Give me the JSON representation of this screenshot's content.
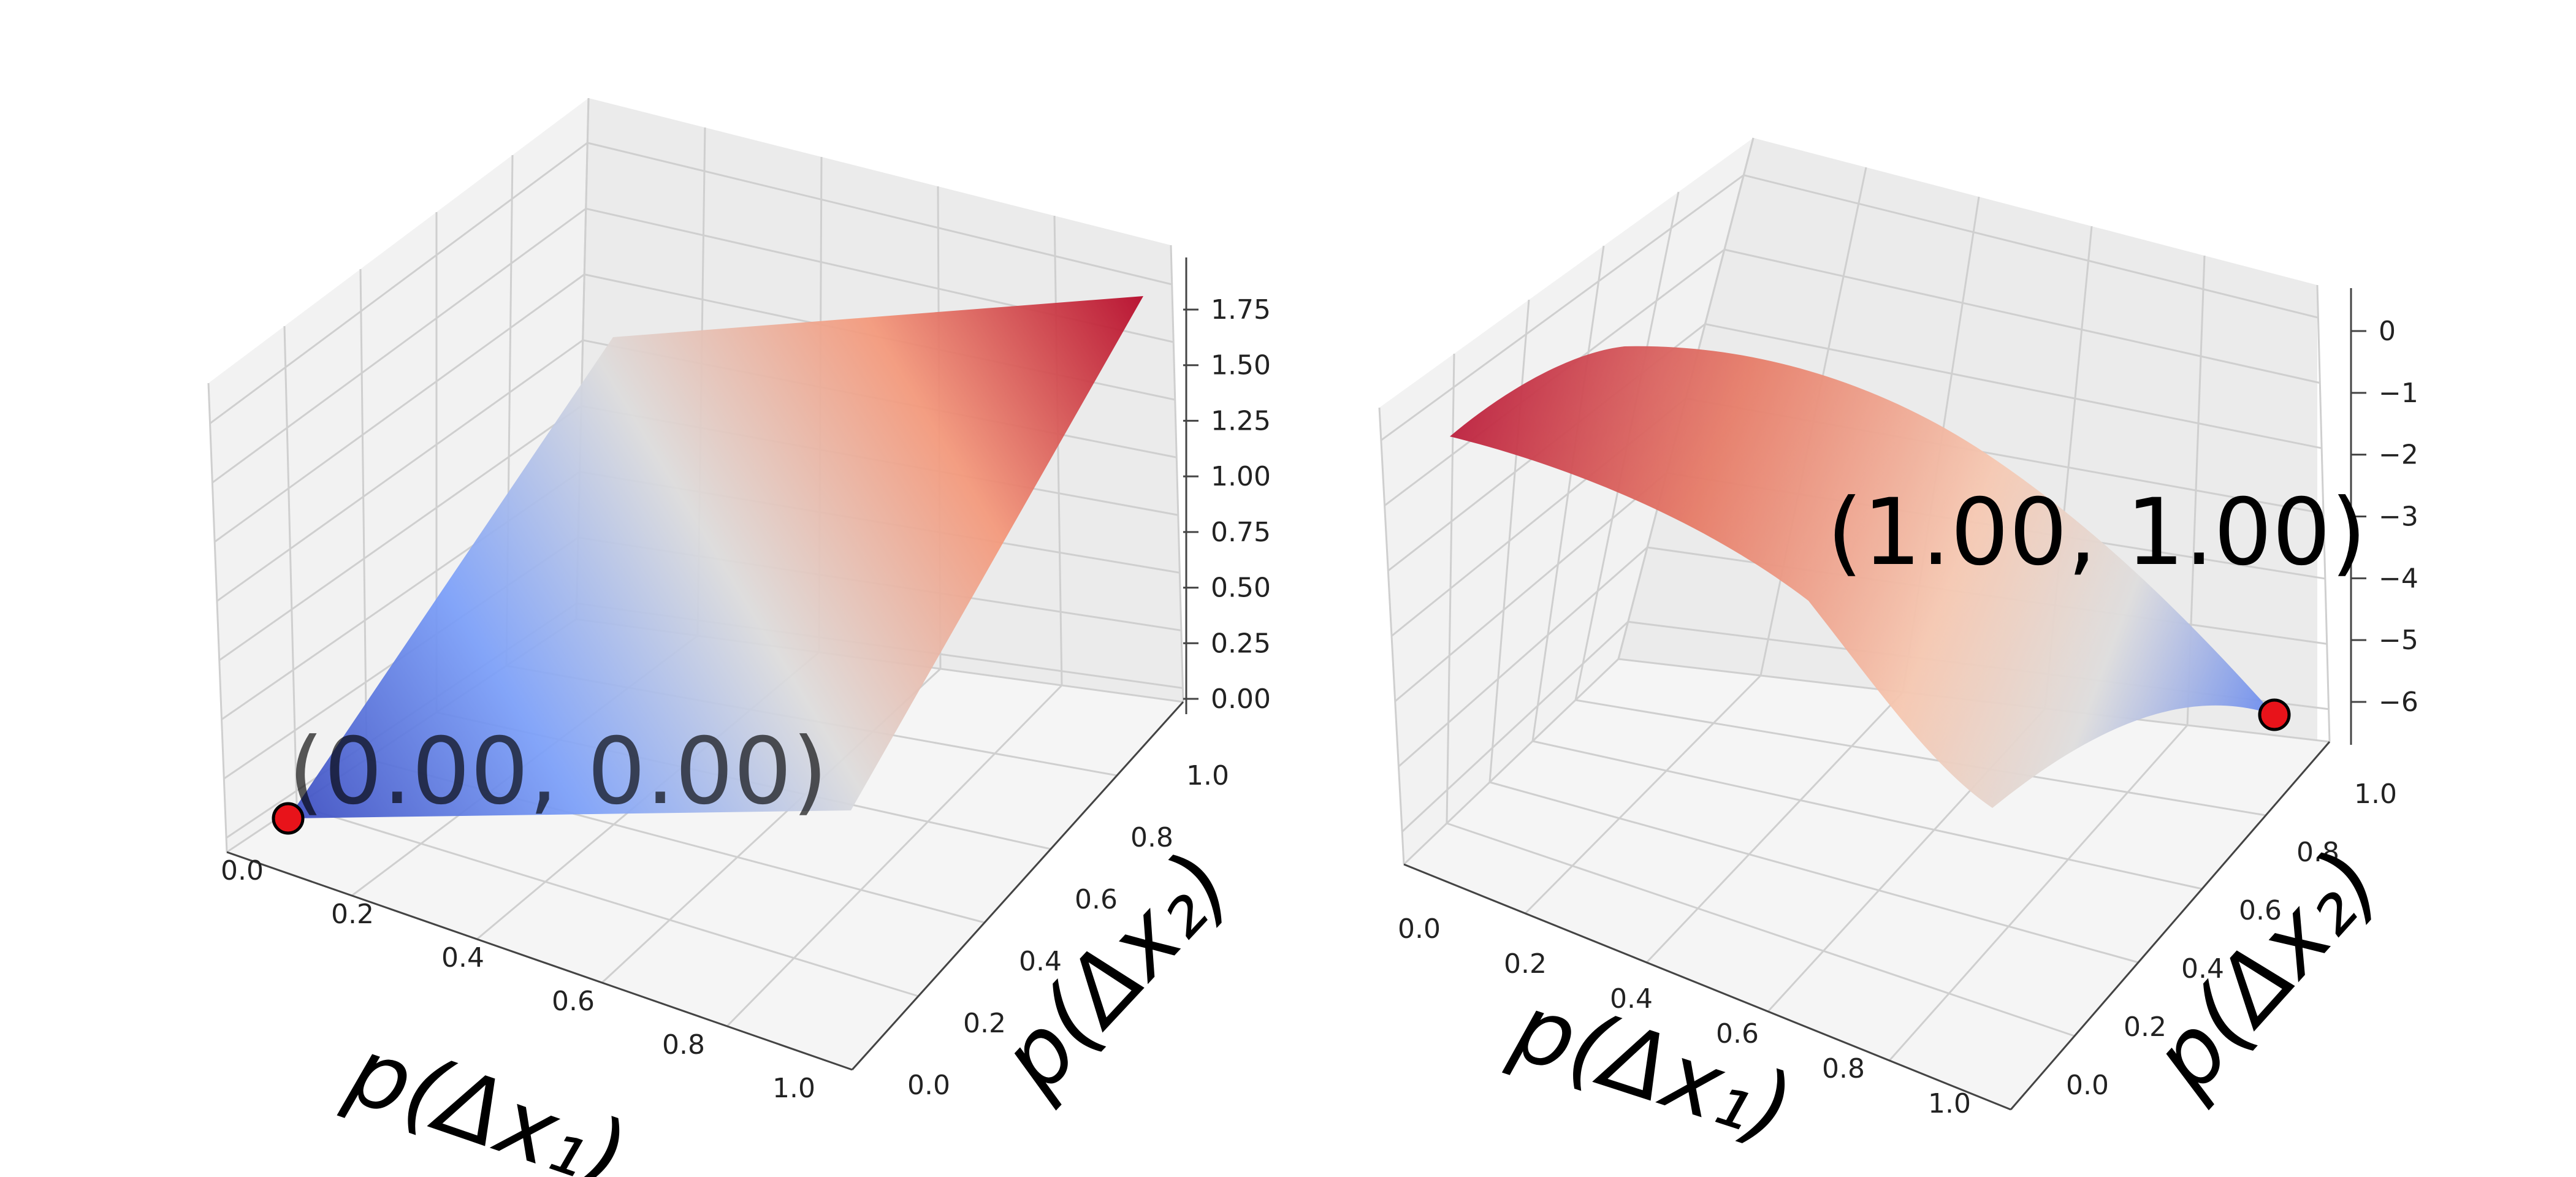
{
  "chart_data": [
    {
      "type": "surface",
      "xlabel": "p(Δx₁)",
      "ylabel": "p(Δx₂)",
      "zlabel": "",
      "x_ticks": [
        "0.0",
        "0.2",
        "0.4",
        "0.6",
        "0.8",
        "1.0"
      ],
      "y_ticks": [
        "0.0",
        "0.2",
        "0.4",
        "0.6",
        "0.8",
        "1.0"
      ],
      "z_ticks": [
        "0.00",
        "0.25",
        "0.50",
        "0.75",
        "1.00",
        "1.25",
        "1.50",
        "1.75"
      ],
      "xlim": [
        0,
        1
      ],
      "ylim": [
        0,
        1
      ],
      "zlim": [
        -0.06,
        1.92
      ],
      "colormap": "coolwarm",
      "surface": {
        "x_range": [
          0,
          1
        ],
        "y_range": [
          0,
          1
        ],
        "z_corners": {
          "x0_y0": 0.0,
          "x1_y0": 0.5,
          "x0_y1": 1.5,
          "x1_y1": 1.85
        }
      },
      "marker": {
        "x": 0.0,
        "y": 0.0,
        "z": 0.0,
        "color": "#e8131a"
      },
      "annotation": "(0.00, 0.00)",
      "grid": true
    },
    {
      "type": "surface",
      "xlabel": "p(Δx₁)",
      "ylabel": "p(Δx₂)",
      "zlabel": "",
      "x_ticks": [
        "0.0",
        "0.2",
        "0.4",
        "0.6",
        "0.8",
        "1.0"
      ],
      "y_ticks": [
        "0.0",
        "0.2",
        "0.4",
        "0.6",
        "0.8",
        "1.0"
      ],
      "z_ticks": [
        "0",
        "−1",
        "−2",
        "−3",
        "−4",
        "−5",
        "−6"
      ],
      "xlim": [
        0,
        1
      ],
      "ylim": [
        0,
        1
      ],
      "zlim": [
        -6.5,
        0.5
      ],
      "colormap": "coolwarm",
      "surface": {
        "x_range": [
          0,
          1
        ],
        "y_range": [
          0,
          1
        ],
        "shape": "concave dome, maximum ≈ -1.0 near x=0.2, y=0.5; minimum ≈ -6.0 at x=1, y=1"
      },
      "marker": {
        "x": 1.0,
        "y": 1.0,
        "z": -6.0,
        "color": "#e8131a"
      },
      "annotation": "(1.00, 1.00)",
      "grid": true
    }
  ]
}
